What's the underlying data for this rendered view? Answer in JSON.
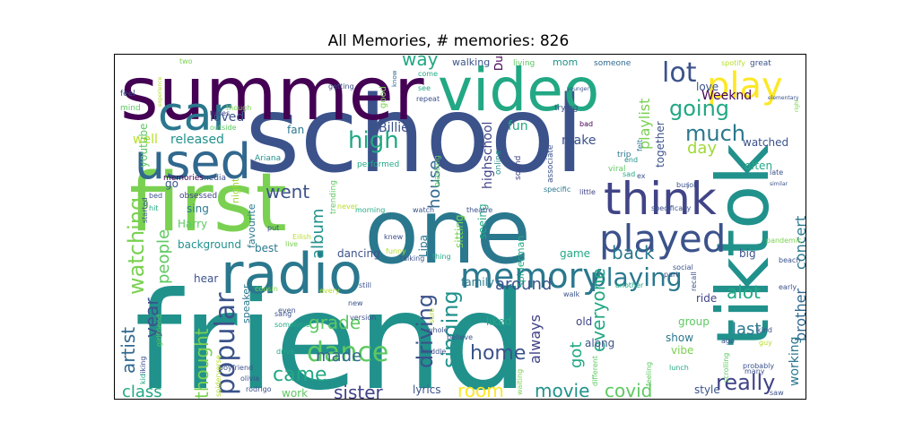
{
  "title": "All Memories, # memories: 826",
  "chart_data": {
    "type": "wordcloud",
    "title": "All Memories, # memories: 826",
    "words": [
      {
        "text": "friend",
        "color": "#21918c"
      },
      {
        "text": "school",
        "color": "#3b528b"
      },
      {
        "text": "one",
        "color": "#2a788e"
      },
      {
        "text": "summer",
        "color": "#440154"
      },
      {
        "text": "first",
        "color": "#7ad151"
      },
      {
        "text": "video",
        "color": "#22a884"
      },
      {
        "text": "tiktok",
        "color": "#21918c"
      },
      {
        "text": "radio",
        "color": "#2a788e"
      },
      {
        "text": "used",
        "color": "#31688e"
      },
      {
        "text": "think",
        "color": "#414487"
      },
      {
        "text": "car",
        "color": "#2a788e"
      },
      {
        "text": "played",
        "color": "#3b528b"
      },
      {
        "text": "memory",
        "color": "#2a788e"
      },
      {
        "text": "play",
        "color": "#fde725"
      },
      {
        "text": "lot",
        "color": "#3b528b"
      },
      {
        "text": "dance",
        "color": "#5ec962"
      },
      {
        "text": "popular",
        "color": "#3b528b"
      },
      {
        "text": "playing",
        "color": "#2a788e"
      },
      {
        "text": "high",
        "color": "#22a884"
      },
      {
        "text": "watching",
        "color": "#7ad151"
      },
      {
        "text": "going",
        "color": "#22a884"
      },
      {
        "text": "much",
        "color": "#2a788e"
      },
      {
        "text": "driving",
        "color": "#3b528b"
      },
      {
        "text": "singing",
        "color": "#21918c"
      },
      {
        "text": "really",
        "color": "#414487"
      },
      {
        "text": "way",
        "color": "#22a884"
      },
      {
        "text": "went",
        "color": "#3b528b"
      },
      {
        "text": "came",
        "color": "#22a884"
      },
      {
        "text": "home",
        "color": "#3b528b"
      },
      {
        "text": "grade",
        "color": "#5ec962"
      },
      {
        "text": "sister",
        "color": "#414487"
      },
      {
        "text": "back",
        "color": "#2a788e"
      },
      {
        "text": "year",
        "color": "#3b528b"
      },
      {
        "text": "alot",
        "color": "#22a884"
      },
      {
        "text": "people",
        "color": "#5ec962"
      },
      {
        "text": "thought",
        "color": "#7ad151"
      },
      {
        "text": "everyone",
        "color": "#22a884"
      },
      {
        "text": "made",
        "color": "#31688e"
      },
      {
        "text": "artist",
        "color": "#31688e"
      },
      {
        "text": "class",
        "color": "#22a884"
      },
      {
        "text": "movie",
        "color": "#21918c"
      },
      {
        "text": "covid",
        "color": "#5ec962"
      },
      {
        "text": "room",
        "color": "#fde725"
      },
      {
        "text": "around",
        "color": "#3b528b"
      },
      {
        "text": "album",
        "color": "#21918c"
      },
      {
        "text": "day",
        "color": "#a0da39"
      },
      {
        "text": "house",
        "color": "#31688e"
      },
      {
        "text": "playlist",
        "color": "#7ad151"
      },
      {
        "text": "last",
        "color": "#2a788e"
      },
      {
        "text": "always",
        "color": "#414487"
      },
      {
        "text": "got",
        "color": "#22a884"
      },
      {
        "text": "concert",
        "color": "#2a788e"
      },
      {
        "text": "brother",
        "color": "#31688e"
      },
      {
        "text": "working",
        "color": "#2a788e"
      },
      {
        "text": "highschool",
        "color": "#414487"
      },
      {
        "text": "Billie",
        "color": "#3b528b"
      },
      {
        "text": "Weeknd",
        "color": "#440154"
      },
      {
        "text": "released",
        "color": "#21918c"
      },
      {
        "text": "loved",
        "color": "#3b528b"
      },
      {
        "text": "well",
        "color": "#b5de2b"
      },
      {
        "text": "youtube",
        "color": "#5ec962"
      },
      {
        "text": "fan",
        "color": "#2a788e"
      },
      {
        "text": "make",
        "color": "#3b528b"
      },
      {
        "text": "fun",
        "color": "#22a884"
      },
      {
        "text": "watched",
        "color": "#3b528b"
      },
      {
        "text": "often",
        "color": "#22a884"
      },
      {
        "text": "love",
        "color": "#3b528b"
      },
      {
        "text": "together",
        "color": "#3b528b"
      },
      {
        "text": "Dua",
        "color": "#440154"
      },
      {
        "text": "Lipa",
        "color": "#2a788e"
      },
      {
        "text": "Harry",
        "color": "#5ec962"
      },
      {
        "text": "sing",
        "color": "#2a788e"
      },
      {
        "text": "background",
        "color": "#21918c"
      },
      {
        "text": "best",
        "color": "#2a788e"
      },
      {
        "text": "hear",
        "color": "#3b528b"
      },
      {
        "text": "dancing",
        "color": "#3b528b"
      },
      {
        "text": "family",
        "color": "#2a788e"
      },
      {
        "text": "game",
        "color": "#22a884"
      },
      {
        "text": "spiderman",
        "color": "#22a884"
      },
      {
        "text": "seeing",
        "color": "#22a884"
      },
      {
        "text": "sitting",
        "color": "#7ad151"
      },
      {
        "text": "ride",
        "color": "#414487"
      },
      {
        "text": "big",
        "color": "#3b528b"
      },
      {
        "text": "liked",
        "color": "#22a884"
      },
      {
        "text": "old",
        "color": "#414487"
      },
      {
        "text": "along",
        "color": "#3b528b"
      },
      {
        "text": "show",
        "color": "#2a788e"
      },
      {
        "text": "vibe",
        "color": "#7ad151"
      },
      {
        "text": "group",
        "color": "#5ec962"
      },
      {
        "text": "style",
        "color": "#3b528b"
      },
      {
        "text": "lyrics",
        "color": "#3b528b"
      },
      {
        "text": "work",
        "color": "#5ec962"
      },
      {
        "text": "speaker",
        "color": "#2a788e"
      },
      {
        "text": "favourite",
        "color": "#2a788e"
      },
      {
        "text": "night",
        "color": "#a0da39"
      },
      {
        "text": "go",
        "color": "#3b528b"
      },
      {
        "text": "trending",
        "color": "#5ec962"
      },
      {
        "text": "obsessed",
        "color": "#414487"
      },
      {
        "text": "memories",
        "color": "#440154"
      },
      {
        "text": "media",
        "color": "#3b528b"
      },
      {
        "text": "Ariana",
        "color": "#21918c"
      },
      {
        "text": "performed",
        "color": "#22a884"
      },
      {
        "text": "blasting",
        "color": "#5ec962"
      },
      {
        "text": "associate",
        "color": "#3b528b"
      },
      {
        "text": "online",
        "color": "#21918c"
      },
      {
        "text": "sound",
        "color": "#414487"
      },
      {
        "text": "trip",
        "color": "#2a788e"
      },
      {
        "text": "viral",
        "color": "#5ec962"
      },
      {
        "text": "mom",
        "color": "#21918c"
      },
      {
        "text": "walking",
        "color": "#3b528b"
      },
      {
        "text": "living",
        "color": "#5ec962"
      },
      {
        "text": "someone",
        "color": "#31688e"
      },
      {
        "text": "great",
        "color": "#3b528b"
      },
      {
        "text": "two",
        "color": "#7ad151"
      },
      {
        "text": "spotify",
        "color": "#b5de2b"
      },
      {
        "text": "feel",
        "color": "#3b528b"
      },
      {
        "text": "mind",
        "color": "#5ec962"
      },
      {
        "text": "times",
        "color": "#414487"
      },
      {
        "text": "outside",
        "color": "#5ec962"
      },
      {
        "text": "though",
        "color": "#7ad151"
      },
      {
        "text": "getting",
        "color": "#3b528b"
      },
      {
        "text": "know",
        "color": "#31688e"
      },
      {
        "text": "come",
        "color": "#22a884"
      },
      {
        "text": "see",
        "color": "#22a884"
      },
      {
        "text": "repeat",
        "color": "#3b528b"
      },
      {
        "text": "good",
        "color": "#7ad151"
      },
      {
        "text": "trying",
        "color": "#3b528b"
      },
      {
        "text": "bad",
        "color": "#440154"
      },
      {
        "text": "felt",
        "color": "#2a788e"
      },
      {
        "text": "end",
        "color": "#21918c"
      },
      {
        "text": "sad",
        "color": "#22a884"
      },
      {
        "text": "ex",
        "color": "#3b528b"
      },
      {
        "text": "little",
        "color": "#414487"
      },
      {
        "text": "specific",
        "color": "#2a788e"
      },
      {
        "text": "theatre",
        "color": "#3b528b"
      },
      {
        "text": "watch",
        "color": "#3b528b"
      },
      {
        "text": "morning",
        "color": "#22a884"
      },
      {
        "text": "long",
        "color": "#2a788e"
      },
      {
        "text": "knew",
        "color": "#3b528b"
      },
      {
        "text": "funny",
        "color": "#b5de2b"
      },
      {
        "text": "put",
        "color": "#3b528b"
      },
      {
        "text": "live",
        "color": "#7ad151"
      },
      {
        "text": "Eilish",
        "color": "#b5de2b"
      },
      {
        "text": "never",
        "color": "#b5de2b"
      },
      {
        "text": "bed",
        "color": "#3b528b"
      },
      {
        "text": "hit",
        "color": "#22a884"
      },
      {
        "text": "started",
        "color": "#3b528b"
      },
      {
        "text": "girlfriend",
        "color": "#5ec962"
      },
      {
        "text": "liking",
        "color": "#3b528b"
      },
      {
        "text": "kid",
        "color": "#22a884"
      },
      {
        "text": "boyfriend",
        "color": "#3b528b"
      },
      {
        "text": "olivia",
        "color": "#3b528b"
      },
      {
        "text": "rodrigo",
        "color": "#3b528b"
      },
      {
        "text": "spiderverse",
        "color": "#b5de2b"
      },
      {
        "text": "cousin",
        "color": "#7ad151"
      },
      {
        "text": "sang",
        "color": "#3b528b"
      },
      {
        "text": "drive",
        "color": "#22a884"
      },
      {
        "text": "even",
        "color": "#3b528b"
      },
      {
        "text": "sometime",
        "color": "#22a884"
      },
      {
        "text": "new",
        "color": "#3b528b"
      },
      {
        "text": "version",
        "color": "#3b528b"
      },
      {
        "text": "every",
        "color": "#b5de2b"
      },
      {
        "text": "still",
        "color": "#3b528b"
      },
      {
        "text": "talking",
        "color": "#3b528b"
      },
      {
        "text": "thing",
        "color": "#22a884"
      },
      {
        "text": "sure",
        "color": "#b5de2b"
      },
      {
        "text": "whole",
        "color": "#3b528b"
      },
      {
        "text": "believe",
        "color": "#3b528b"
      },
      {
        "text": "middle",
        "color": "#3b528b"
      },
      {
        "text": "waiting",
        "color": "#7ad151"
      },
      {
        "text": "different",
        "color": "#5ec962"
      },
      {
        "text": "walk",
        "color": "#3b528b"
      },
      {
        "text": "feeling",
        "color": "#5ec962"
      },
      {
        "text": "lunch",
        "color": "#22a884"
      },
      {
        "text": "social",
        "color": "#3b528b"
      },
      {
        "text": "another",
        "color": "#22a884"
      },
      {
        "text": "part",
        "color": "#3b528b"
      },
      {
        "text": "recall",
        "color": "#3b528b"
      },
      {
        "text": "ago",
        "color": "#3b528b"
      },
      {
        "text": "scrolling",
        "color": "#5ec962"
      },
      {
        "text": "many",
        "color": "#3b528b"
      },
      {
        "text": "probably",
        "color": "#3b528b"
      },
      {
        "text": "saw",
        "color": "#3b528b"
      },
      {
        "text": "kind",
        "color": "#3b528b"
      },
      {
        "text": "guy",
        "color": "#b5de2b"
      },
      {
        "text": "early",
        "color": "#3b528b"
      },
      {
        "text": "beach",
        "color": "#3b528b"
      },
      {
        "text": "pandemic",
        "color": "#7ad151"
      },
      {
        "text": "late",
        "color": "#3b528b"
      },
      {
        "text": "similar",
        "color": "#3b528b"
      },
      {
        "text": "elementary",
        "color": "#3b528b"
      },
      {
        "text": "right",
        "color": "#7ad151"
      },
      {
        "text": "bus",
        "color": "#3b528b"
      },
      {
        "text": "job",
        "color": "#3b528b"
      },
      {
        "text": "specifically",
        "color": "#3b528b"
      },
      {
        "text": "younger",
        "color": "#3b528b"
      },
      {
        "text": "experience",
        "color": "#b5de2b"
      }
    ]
  }
}
